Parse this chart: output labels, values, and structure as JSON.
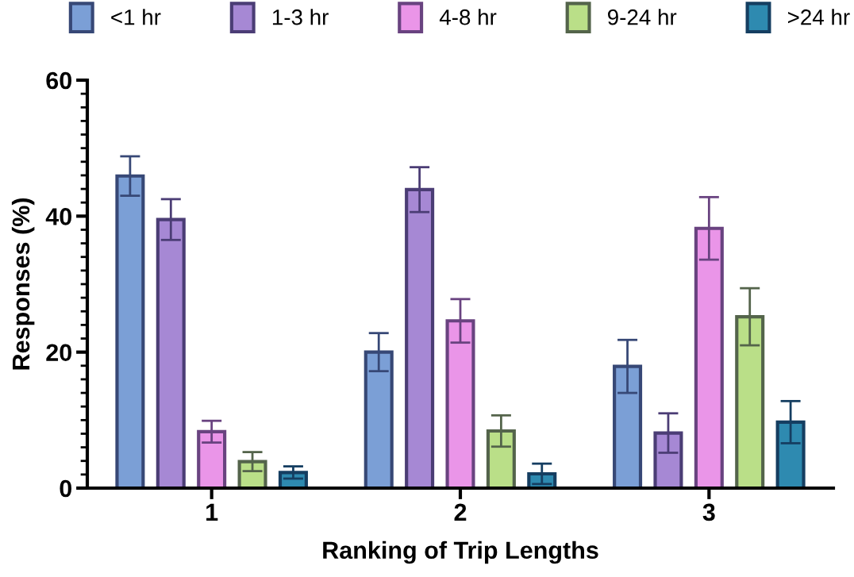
{
  "chart_data": {
    "type": "bar",
    "xlabel": "Ranking of Trip Lengths",
    "ylabel": "Responses (%)",
    "categories": [
      "1",
      "2",
      "3"
    ],
    "ylim": [
      0,
      60
    ],
    "yticks": [
      0,
      20,
      40,
      60
    ],
    "legend": "top",
    "grid": false,
    "series": [
      {
        "name": "<1 hr",
        "color": "#7b9fd6",
        "values": [
          45.9,
          20.0,
          17.9
        ],
        "errors": [
          2.9,
          2.8,
          3.9
        ]
      },
      {
        "name": "1-3 hr",
        "color": "#a688d4",
        "values": [
          39.5,
          43.9,
          8.1
        ],
        "errors": [
          3.0,
          3.3,
          2.9
        ]
      },
      {
        "name": "4-8 hr",
        "color": "#ea95e8",
        "values": [
          8.3,
          24.6,
          38.2
        ],
        "errors": [
          1.6,
          3.2,
          4.6
        ]
      },
      {
        "name": "9-24 hr",
        "color": "#badf88",
        "values": [
          3.9,
          8.4,
          25.2
        ],
        "errors": [
          1.4,
          2.3,
          4.2
        ]
      },
      {
        "name": ">24 hr",
        "color": "#2e8ab0",
        "values": [
          2.3,
          2.1,
          9.7
        ],
        "errors": [
          0.9,
          1.5,
          3.1
        ]
      }
    ]
  }
}
